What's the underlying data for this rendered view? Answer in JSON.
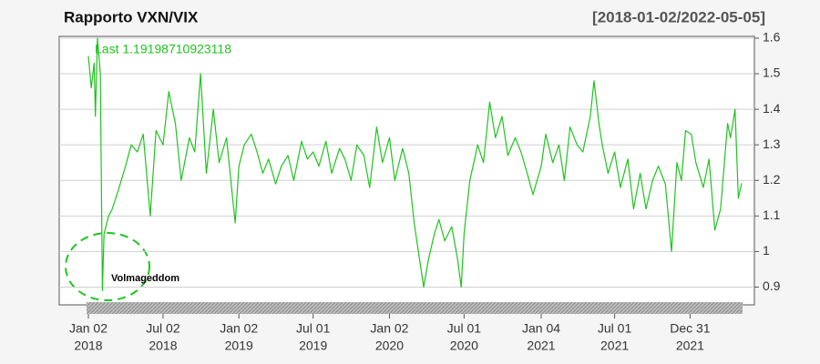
{
  "chart_data": {
    "type": "line",
    "title": "Rapporto VXN/VIX",
    "subtitle": "[2018-01-02/2022-05-05]",
    "last_label": "Last 1.19198710923118",
    "annotation": "Volmageddom",
    "xlim": [
      "2018-01-02",
      "2022-05-05"
    ],
    "ylim": [
      0.85,
      1.605
    ],
    "yticks": [
      0.9,
      1.0,
      1.1,
      1.2,
      1.3,
      1.4,
      1.5,
      1.6
    ],
    "xticks": [
      {
        "value": "2018-01-02",
        "label": [
          "Jan 02",
          "2018"
        ]
      },
      {
        "value": "2018-07-02",
        "label": [
          "Jul 02",
          "2018"
        ]
      },
      {
        "value": "2019-01-02",
        "label": [
          "Jan 02",
          "2019"
        ]
      },
      {
        "value": "2019-07-01",
        "label": [
          "Jul 01",
          "2019"
        ]
      },
      {
        "value": "2020-01-02",
        "label": [
          "Jan 02",
          "2020"
        ]
      },
      {
        "value": "2020-07-01",
        "label": [
          "Jul 01",
          "2020"
        ]
      },
      {
        "value": "2021-01-04",
        "label": [
          "Jan 04",
          "2021"
        ]
      },
      {
        "value": "2021-07-01",
        "label": [
          "Jul 01",
          "2021"
        ]
      },
      {
        "value": "2021-12-31",
        "label": [
          "Dec 31",
          "2021"
        ]
      }
    ],
    "grid": true,
    "x": [
      "2018-01-02",
      "2018-01-09",
      "2018-01-16",
      "2018-01-19",
      "2018-01-24",
      "2018-01-31",
      "2018-02-05",
      "2018-02-09",
      "2018-02-20",
      "2018-03-01",
      "2018-03-15",
      "2018-04-02",
      "2018-04-16",
      "2018-05-01",
      "2018-05-15",
      "2018-06-01",
      "2018-06-15",
      "2018-07-02",
      "2018-07-16",
      "2018-08-01",
      "2018-08-15",
      "2018-09-04",
      "2018-09-17",
      "2018-10-01",
      "2018-10-15",
      "2018-11-01",
      "2018-11-15",
      "2018-12-03",
      "2018-12-24",
      "2019-01-02",
      "2019-01-15",
      "2019-02-01",
      "2019-02-15",
      "2019-03-01",
      "2019-03-15",
      "2019-04-01",
      "2019-04-15",
      "2019-05-01",
      "2019-05-15",
      "2019-06-03",
      "2019-06-17",
      "2019-07-01",
      "2019-07-15",
      "2019-08-01",
      "2019-08-15",
      "2019-09-03",
      "2019-09-16",
      "2019-10-01",
      "2019-10-15",
      "2019-11-01",
      "2019-11-15",
      "2019-12-02",
      "2019-12-16",
      "2020-01-02",
      "2020-01-15",
      "2020-02-03",
      "2020-02-18",
      "2020-03-02",
      "2020-03-16",
      "2020-03-25",
      "2020-04-06",
      "2020-04-20",
      "2020-05-01",
      "2020-05-15",
      "2020-06-01",
      "2020-06-15",
      "2020-06-24",
      "2020-07-01",
      "2020-07-15",
      "2020-08-03",
      "2020-08-17",
      "2020-09-01",
      "2020-09-15",
      "2020-10-01",
      "2020-10-15",
      "2020-11-02",
      "2020-11-16",
      "2020-12-01",
      "2020-12-15",
      "2021-01-04",
      "2021-01-15",
      "2021-02-01",
      "2021-02-16",
      "2021-03-01",
      "2021-03-15",
      "2021-04-01",
      "2021-04-15",
      "2021-05-03",
      "2021-05-12",
      "2021-05-24",
      "2021-06-01",
      "2021-06-15",
      "2021-07-01",
      "2021-07-15",
      "2021-08-02",
      "2021-08-16",
      "2021-09-01",
      "2021-09-15",
      "2021-10-01",
      "2021-10-15",
      "2021-11-01",
      "2021-11-16",
      "2021-11-29",
      "2021-12-10",
      "2021-12-20",
      "2022-01-03",
      "2022-01-14",
      "2022-02-01",
      "2022-02-15",
      "2022-03-01",
      "2022-03-15",
      "2022-04-01",
      "2022-04-08",
      "2022-04-19",
      "2022-04-27",
      "2022-05-05"
    ],
    "series": [
      {
        "name": "VXN/VIX",
        "color": "#1ec41e",
        "values": [
          1.55,
          1.46,
          1.53,
          1.38,
          1.6,
          1.5,
          0.89,
          1.05,
          1.1,
          1.12,
          1.17,
          1.24,
          1.3,
          1.28,
          1.33,
          1.1,
          1.34,
          1.3,
          1.45,
          1.36,
          1.2,
          1.32,
          1.28,
          1.5,
          1.22,
          1.4,
          1.25,
          1.32,
          1.08,
          1.24,
          1.3,
          1.33,
          1.28,
          1.22,
          1.26,
          1.19,
          1.24,
          1.27,
          1.2,
          1.31,
          1.26,
          1.28,
          1.24,
          1.31,
          1.22,
          1.29,
          1.26,
          1.2,
          1.3,
          1.27,
          1.18,
          1.35,
          1.25,
          1.32,
          1.2,
          1.29,
          1.22,
          1.08,
          0.97,
          0.9,
          0.98,
          1.05,
          1.09,
          1.03,
          1.07,
          0.98,
          0.9,
          1.05,
          1.2,
          1.3,
          1.25,
          1.42,
          1.32,
          1.38,
          1.27,
          1.32,
          1.28,
          1.22,
          1.16,
          1.24,
          1.33,
          1.25,
          1.3,
          1.2,
          1.35,
          1.3,
          1.28,
          1.38,
          1.48,
          1.36,
          1.3,
          1.22,
          1.28,
          1.18,
          1.26,
          1.12,
          1.22,
          1.12,
          1.2,
          1.24,
          1.19,
          1.0,
          1.25,
          1.2,
          1.34,
          1.33,
          1.25,
          1.18,
          1.26,
          1.06,
          1.12,
          1.36,
          1.32,
          1.4,
          1.15,
          1.19198710923118
        ]
      }
    ]
  }
}
